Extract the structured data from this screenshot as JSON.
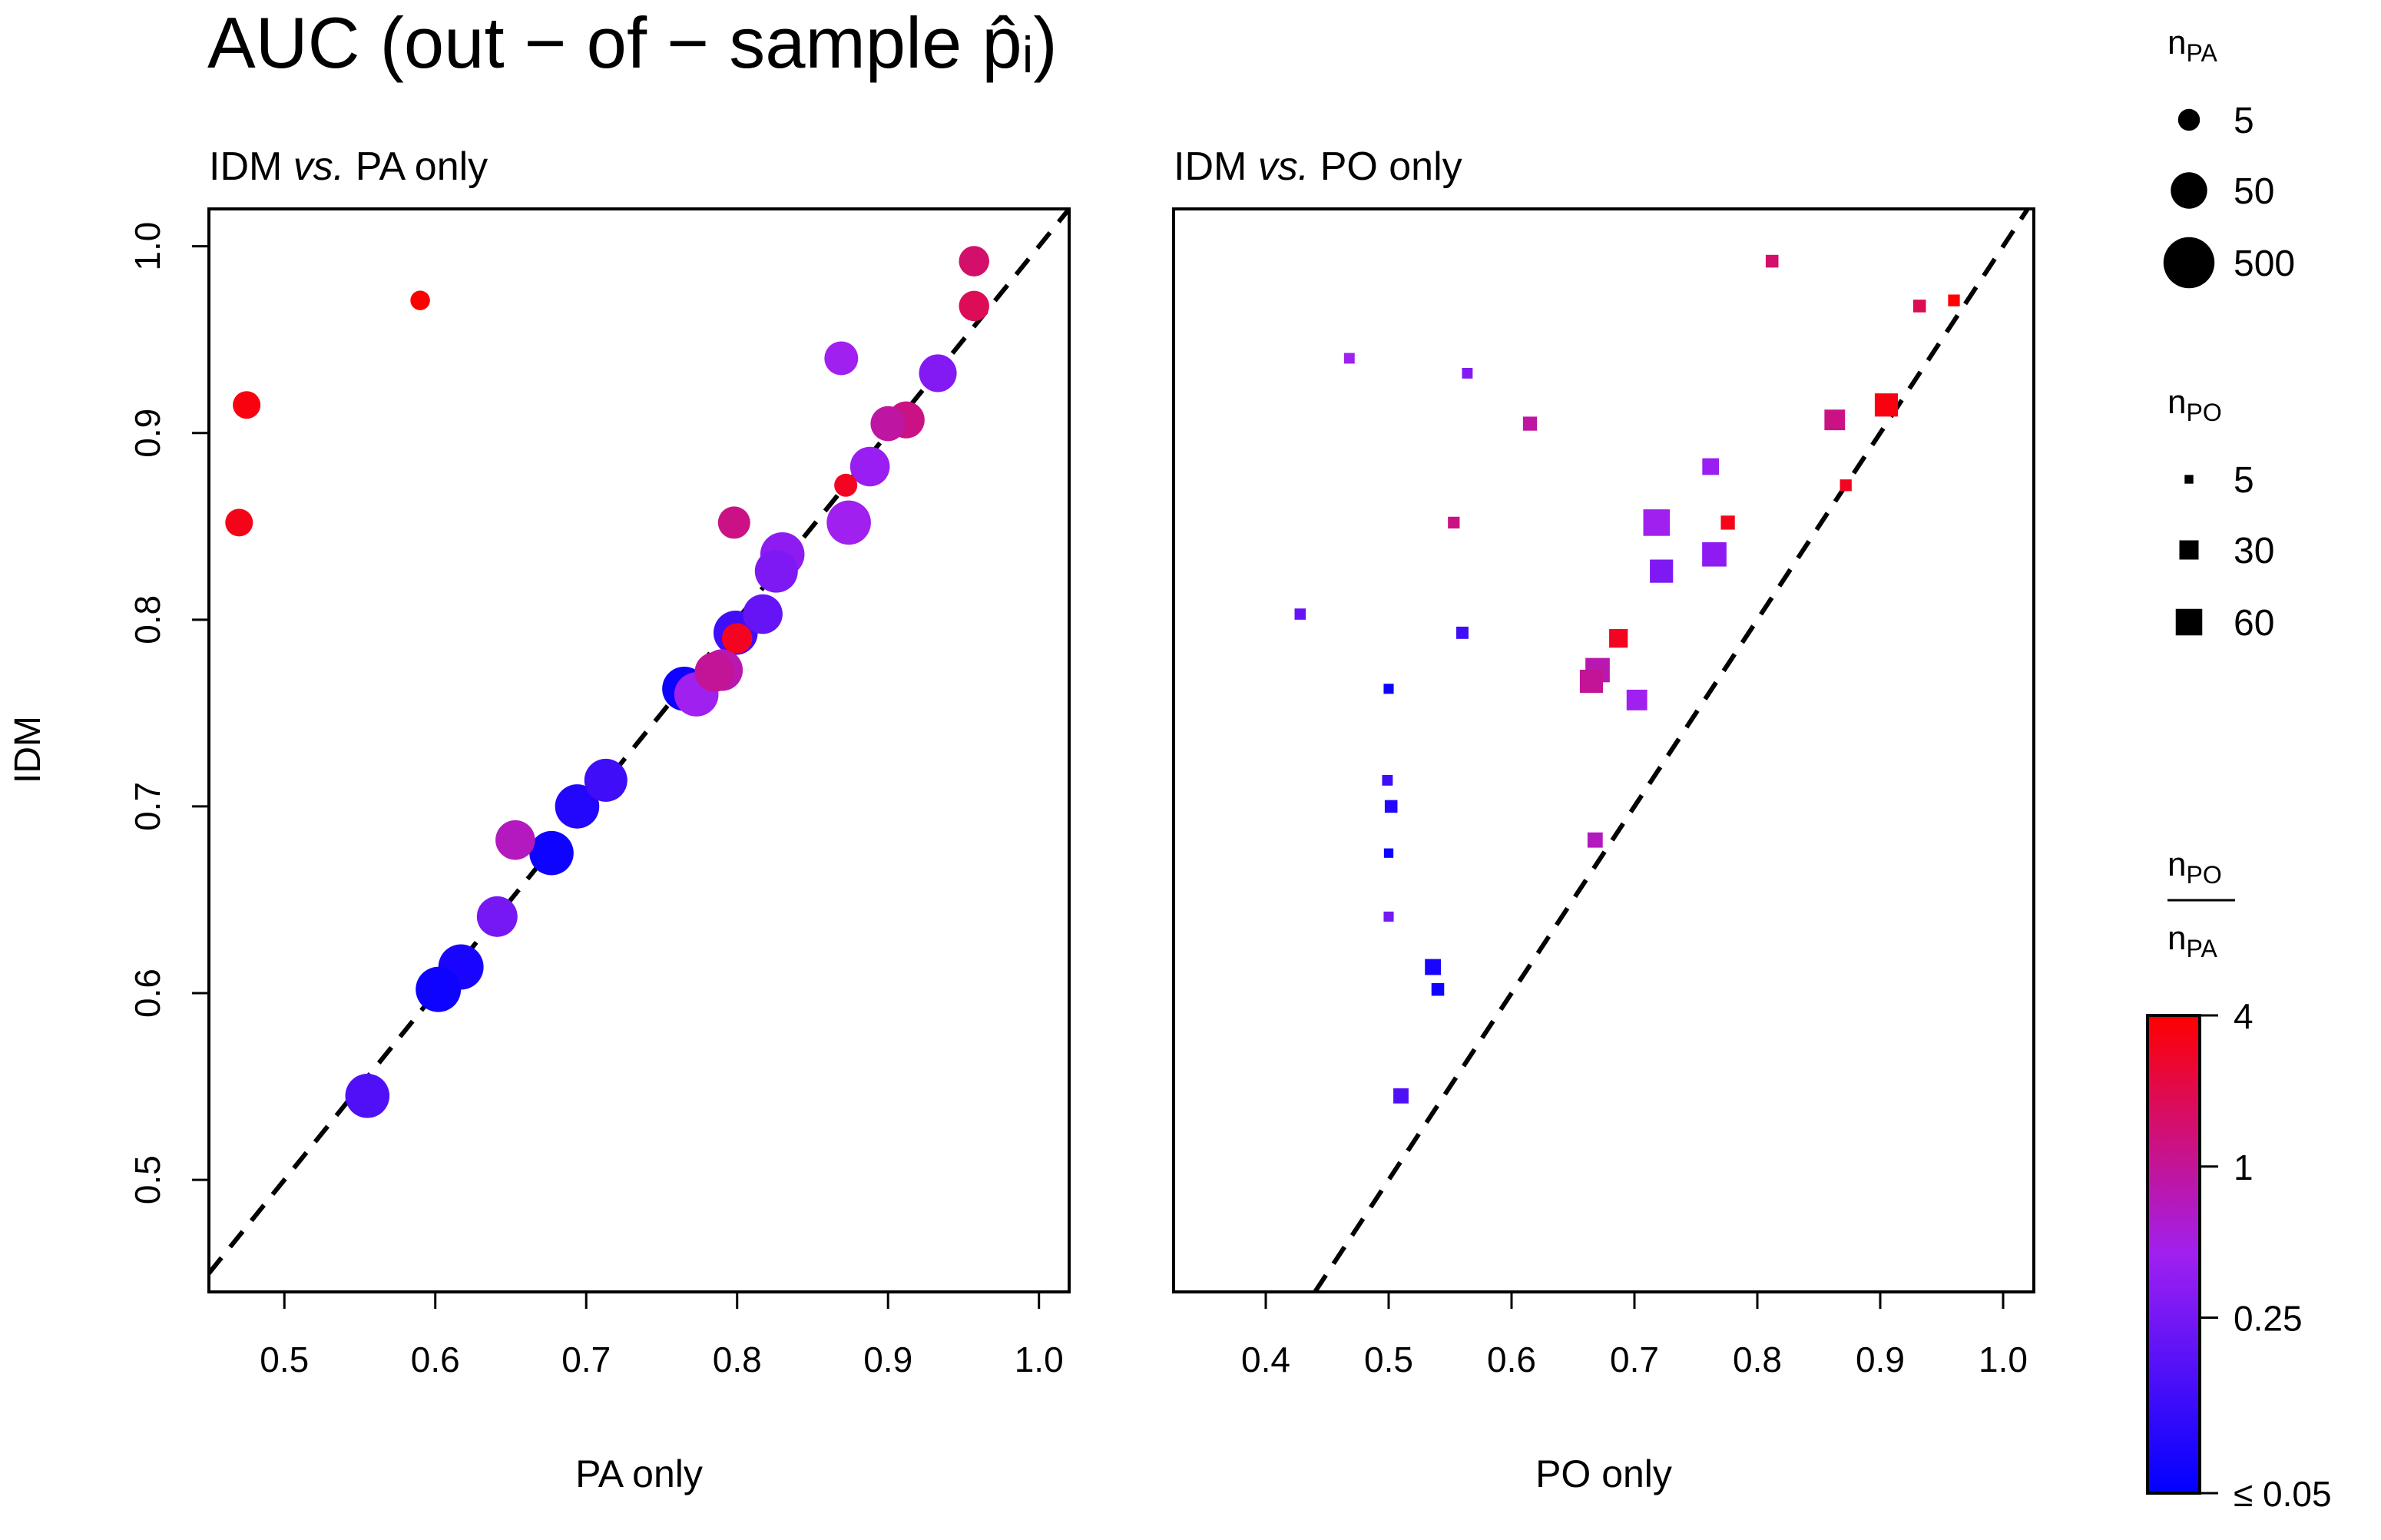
{
  "title": "AUC (out − of − sample  p̂ᵢ)",
  "ylabel": "IDM",
  "legend_pa": {
    "title_main": "n",
    "title_sub": "PA",
    "entries": [
      "5",
      "50",
      "500"
    ],
    "values": [
      5,
      50,
      500
    ]
  },
  "legend_po": {
    "title_main": "n",
    "title_sub": "PO",
    "entries": [
      "5",
      "30",
      "60"
    ],
    "values": [
      5,
      30,
      60
    ]
  },
  "colorbar": {
    "num_main": "n",
    "num_sub": "PO",
    "den_main": "n",
    "den_sub": "PA",
    "tick_labels": [
      "4",
      "1",
      "0.25",
      "≤ 0.05"
    ],
    "tick_values": [
      4,
      1,
      0.25,
      0.05
    ],
    "colors": {
      "high": "#FF0000",
      "mid": "#A020F0",
      "low": "#0000FF"
    }
  },
  "chart_data": [
    {
      "type": "scatter",
      "title": "IDM vs. PA only",
      "title_main": "IDM",
      "title_italic": "vs.",
      "title_rest": "PA only",
      "xlabel": "PA only",
      "ylabel": "IDM",
      "xlim": [
        0.45,
        1.02
      ],
      "ylim": [
        0.44,
        1.02
      ],
      "xticks": [
        "0.5",
        "0.6",
        "0.7",
        "0.8",
        "0.9",
        "1.0"
      ],
      "yticks": [
        "0.5",
        "0.6",
        "0.7",
        "0.8",
        "0.9",
        "1.0"
      ],
      "reference_line": "y = x (dashed)",
      "marker": "circle",
      "points": [
        {
          "x": 0.59,
          "y": 0.971,
          "n_pa": 3,
          "ratio": 4
        },
        {
          "x": 0.475,
          "y": 0.915,
          "n_pa": 10,
          "ratio": 3.5
        },
        {
          "x": 0.47,
          "y": 0.852,
          "n_pa": 10,
          "ratio": 3.2
        },
        {
          "x": 0.957,
          "y": 0.992,
          "n_pa": 15,
          "ratio": 1.5
        },
        {
          "x": 0.957,
          "y": 0.968,
          "n_pa": 15,
          "ratio": 1.8
        },
        {
          "x": 0.869,
          "y": 0.94,
          "n_pa": 25,
          "ratio": 0.45
        },
        {
          "x": 0.933,
          "y": 0.932,
          "n_pa": 45,
          "ratio": 0.3
        },
        {
          "x": 0.912,
          "y": 0.907,
          "n_pa": 40,
          "ratio": 1.2
        },
        {
          "x": 0.9,
          "y": 0.905,
          "n_pa": 30,
          "ratio": 0.9
        },
        {
          "x": 0.888,
          "y": 0.882,
          "n_pa": 60,
          "ratio": 0.4
        },
        {
          "x": 0.872,
          "y": 0.872,
          "n_pa": 5,
          "ratio": 3
        },
        {
          "x": 0.798,
          "y": 0.852,
          "n_pa": 20,
          "ratio": 1.2
        },
        {
          "x": 0.874,
          "y": 0.852,
          "n_pa": 120,
          "ratio": 0.45
        },
        {
          "x": 0.83,
          "y": 0.835,
          "n_pa": 120,
          "ratio": 0.35
        },
        {
          "x": 0.826,
          "y": 0.826,
          "n_pa": 100,
          "ratio": 0.28
        },
        {
          "x": 0.817,
          "y": 0.803,
          "n_pa": 60,
          "ratio": 0.2
        },
        {
          "x": 0.799,
          "y": 0.793,
          "n_pa": 120,
          "ratio": 0.12
        },
        {
          "x": 0.8,
          "y": 0.79,
          "n_pa": 15,
          "ratio": 3
        },
        {
          "x": 0.79,
          "y": 0.773,
          "n_pa": 80,
          "ratio": 0.8
        },
        {
          "x": 0.785,
          "y": 0.772,
          "n_pa": 60,
          "ratio": 1.0
        },
        {
          "x": 0.765,
          "y": 0.763,
          "n_pa": 120,
          "ratio": 0.06
        },
        {
          "x": 0.773,
          "y": 0.76,
          "n_pa": 120,
          "ratio": 0.45
        },
        {
          "x": 0.713,
          "y": 0.714,
          "n_pa": 100,
          "ratio": 0.12
        },
        {
          "x": 0.694,
          "y": 0.7,
          "n_pa": 120,
          "ratio": 0.08
        },
        {
          "x": 0.653,
          "y": 0.682,
          "n_pa": 60,
          "ratio": 0.7
        },
        {
          "x": 0.677,
          "y": 0.675,
          "n_pa": 120,
          "ratio": 0.06
        },
        {
          "x": 0.641,
          "y": 0.641,
          "n_pa": 70,
          "ratio": 0.25
        },
        {
          "x": 0.617,
          "y": 0.614,
          "n_pa": 140,
          "ratio": 0.07
        },
        {
          "x": 0.602,
          "y": 0.602,
          "n_pa": 140,
          "ratio": 0.06
        },
        {
          "x": 0.555,
          "y": 0.545,
          "n_pa": 120,
          "ratio": 0.15
        }
      ]
    },
    {
      "type": "scatter",
      "title": "IDM vs. PO only",
      "title_main": "IDM",
      "title_italic": "vs.",
      "title_rest": "PO only",
      "xlabel": "PO only",
      "ylabel": "IDM",
      "xlim": [
        0.325,
        1.025
      ],
      "ylim": [
        0.44,
        1.02
      ],
      "xticks": [
        "0.4",
        "0.5",
        "0.6",
        "0.7",
        "0.8",
        "0.9",
        "1.0"
      ],
      "reference_line": "y = x (dashed)",
      "marker": "square",
      "points": [
        {
          "x": 0.812,
          "y": 0.992,
          "n_po": 12,
          "ratio": 1.5
        },
        {
          "x": 0.96,
          "y": 0.971,
          "n_po": 10,
          "ratio": 4
        },
        {
          "x": 0.932,
          "y": 0.968,
          "n_po": 12,
          "ratio": 1.8
        },
        {
          "x": 0.468,
          "y": 0.94,
          "n_po": 8,
          "ratio": 0.45
        },
        {
          "x": 0.564,
          "y": 0.932,
          "n_po": 8,
          "ratio": 0.3
        },
        {
          "x": 0.615,
          "y": 0.905,
          "n_po": 15,
          "ratio": 0.9
        },
        {
          "x": 0.905,
          "y": 0.915,
          "n_po": 45,
          "ratio": 3.5
        },
        {
          "x": 0.863,
          "y": 0.907,
          "n_po": 35,
          "ratio": 1.2
        },
        {
          "x": 0.872,
          "y": 0.872,
          "n_po": 10,
          "ratio": 3
        },
        {
          "x": 0.762,
          "y": 0.882,
          "n_po": 22,
          "ratio": 0.4
        },
        {
          "x": 0.553,
          "y": 0.852,
          "n_po": 10,
          "ratio": 1.2
        },
        {
          "x": 0.776,
          "y": 0.852,
          "n_po": 15,
          "ratio": 3.2
        },
        {
          "x": 0.718,
          "y": 0.852,
          "n_po": 60,
          "ratio": 0.45
        },
        {
          "x": 0.765,
          "y": 0.835,
          "n_po": 50,
          "ratio": 0.35
        },
        {
          "x": 0.722,
          "y": 0.826,
          "n_po": 45,
          "ratio": 0.28
        },
        {
          "x": 0.428,
          "y": 0.803,
          "n_po": 9,
          "ratio": 0.2
        },
        {
          "x": 0.56,
          "y": 0.793,
          "n_po": 11,
          "ratio": 0.12
        },
        {
          "x": 0.687,
          "y": 0.79,
          "n_po": 28,
          "ratio": 3
        },
        {
          "x": 0.67,
          "y": 0.773,
          "n_po": 50,
          "ratio": 0.8
        },
        {
          "x": 0.665,
          "y": 0.767,
          "n_po": 45,
          "ratio": 1.0
        },
        {
          "x": 0.5,
          "y": 0.763,
          "n_po": 7,
          "ratio": 0.06
        },
        {
          "x": 0.702,
          "y": 0.757,
          "n_po": 35,
          "ratio": 0.45
        },
        {
          "x": 0.499,
          "y": 0.714,
          "n_po": 8,
          "ratio": 0.12
        },
        {
          "x": 0.502,
          "y": 0.7,
          "n_po": 12,
          "ratio": 0.08
        },
        {
          "x": 0.668,
          "y": 0.682,
          "n_po": 18,
          "ratio": 0.7
        },
        {
          "x": 0.5,
          "y": 0.675,
          "n_po": 6,
          "ratio": 0.06
        },
        {
          "x": 0.5,
          "y": 0.641,
          "n_po": 7,
          "ratio": 0.25
        },
        {
          "x": 0.536,
          "y": 0.614,
          "n_po": 20,
          "ratio": 0.07
        },
        {
          "x": 0.54,
          "y": 0.602,
          "n_po": 12,
          "ratio": 0.06
        },
        {
          "x": 0.51,
          "y": 0.545,
          "n_po": 18,
          "ratio": 0.15
        }
      ]
    }
  ]
}
